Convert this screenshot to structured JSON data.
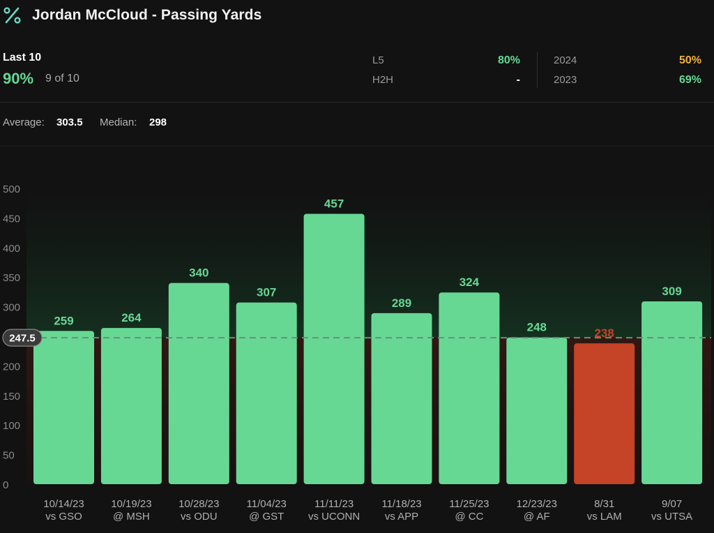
{
  "header": {
    "title": "Jordan McCloud - Passing Yards",
    "icon": "percent-icon"
  },
  "stats": {
    "last_label": "Last 10",
    "last_pct": "90%",
    "last_count": "9 of 10",
    "l5_label": "L5",
    "l5_value": "80%",
    "h2h_label": "H2H",
    "h2h_value": "-",
    "y2024_label": "2024",
    "y2024_value": "50%",
    "y2023_label": "2023",
    "y2023_value": "69%"
  },
  "summary": {
    "average_label": "Average:",
    "average_value": "303.5",
    "median_label": "Median:",
    "median_value": "298"
  },
  "colors": {
    "hit": "#67d894",
    "miss": "#c54326",
    "line": "#6b8f78",
    "neutral": "#ffffff",
    "yellow": "#f2b23e"
  },
  "chart_data": {
    "type": "bar",
    "categories": [
      [
        "10/14/23",
        "vs GSO"
      ],
      [
        "10/19/23",
        "@ MSH"
      ],
      [
        "10/28/23",
        "vs ODU"
      ],
      [
        "11/04/23",
        "@ GST"
      ],
      [
        "11/11/23",
        "vs UCONN"
      ],
      [
        "11/18/23",
        "vs APP"
      ],
      [
        "11/25/23",
        "@ CC"
      ],
      [
        "12/23/23",
        "@ AF"
      ],
      [
        "8/31",
        "vs LAM"
      ],
      [
        "9/07",
        "vs UTSA"
      ]
    ],
    "values": [
      259,
      264,
      340,
      307,
      457,
      289,
      324,
      248,
      238,
      309
    ],
    "line_value": 247.5,
    "line_label": "247.5",
    "ylim": [
      0,
      500
    ],
    "yticks": [
      0,
      50,
      100,
      150,
      200,
      250,
      300,
      350,
      400,
      450,
      500
    ],
    "grid": false
  }
}
